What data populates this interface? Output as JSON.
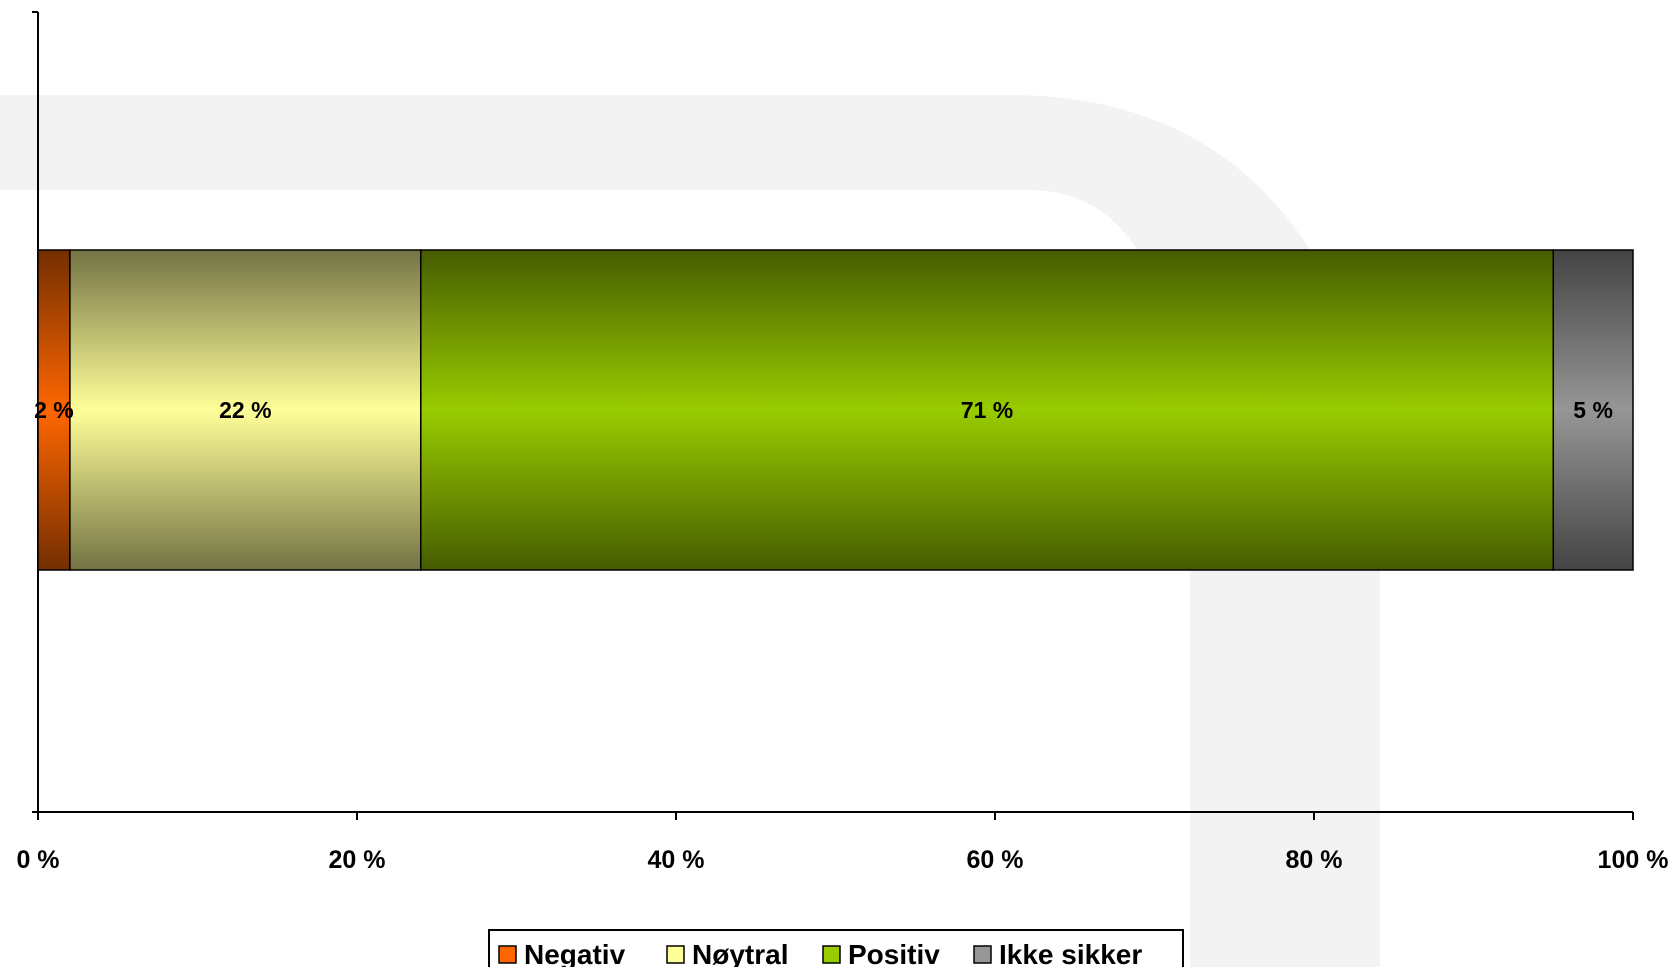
{
  "chart_data": {
    "type": "bar",
    "orientation": "horizontal",
    "stacked": true,
    "categories": [
      ""
    ],
    "series": [
      {
        "name": "Negativ",
        "values": [
          2
        ],
        "label": "2 %",
        "color": "#ff6600"
      },
      {
        "name": "Nøytral",
        "values": [
          22
        ],
        "label": "22 %",
        "color": "#ffff99"
      },
      {
        "name": "Positiv",
        "values": [
          71
        ],
        "label": "71 %",
        "color": "#99cc00"
      },
      {
        "name": "Ikke sikker",
        "values": [
          5
        ],
        "label": "5 %",
        "color": "#969696"
      }
    ],
    "xlim": [
      0,
      100
    ],
    "xticks": [
      0,
      20,
      40,
      60,
      80,
      100
    ],
    "xtick_labels": [
      "0 %",
      "20 %",
      "40 %",
      "60 %",
      "80 %",
      "100 %"
    ],
    "grid": false,
    "legend": "bottom"
  }
}
